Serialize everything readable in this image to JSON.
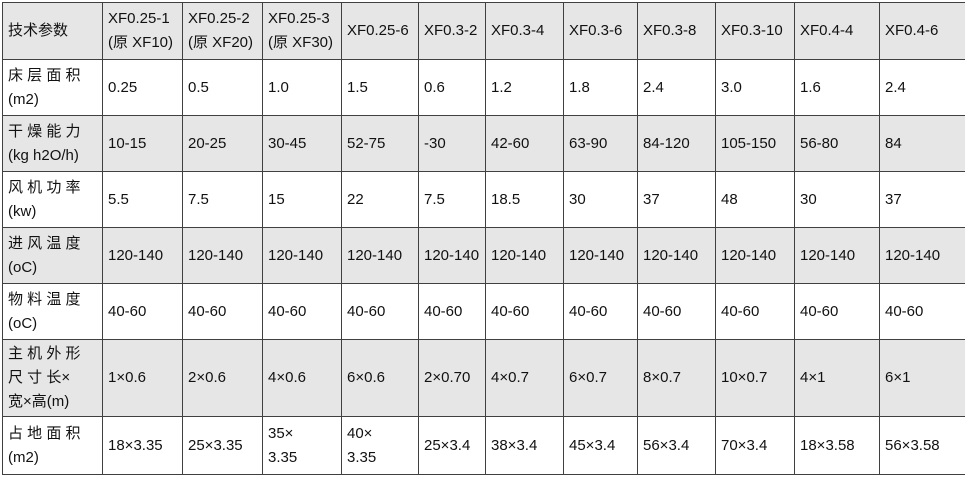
{
  "table": {
    "header": [
      "技术参数",
      "XF0.25-1\n(原 XF10)",
      "XF0.25-2\n(原 XF20)",
      "XF0.25-3\n(原 XF30)",
      "XF0.25-6",
      "XF0.3-2",
      "XF0.3-4",
      "XF0.3-6",
      "XF0.3-8",
      "XF0.3-10",
      "XF0.4-4",
      "XF0.4-6"
    ],
    "rows": [
      {
        "label": "床 层 面 积\n(m2)",
        "values": [
          "0.25",
          "0.5",
          "1.0",
          "1.5",
          "0.6",
          "1.2",
          "1.8",
          "2.4",
          "3.0",
          "1.6",
          "2.4"
        ]
      },
      {
        "label": "干 燥 能 力\n(kg h2O/h)",
        "values": [
          "10-15",
          "20-25",
          "30-45",
          "52-75",
          "-30",
          "42-60",
          "63-90",
          "84-120",
          "105-150",
          "56-80",
          "84"
        ]
      },
      {
        "label": "风 机 功 率\n(kw)",
        "values": [
          "5.5",
          "7.5",
          "15",
          "22",
          "7.5",
          "18.5",
          "30",
          "37",
          "48",
          "30",
          "37"
        ]
      },
      {
        "label": "进 风 温 度\n(oC)",
        "values": [
          "120-140",
          "120-140",
          "120-140",
          "120-140",
          "120-140",
          "120-140",
          "120-140",
          "120-140",
          "120-140",
          "120-140",
          "120-140"
        ]
      },
      {
        "label": "物 料 温 度\n(oC)",
        "values": [
          "40-60",
          "40-60",
          "40-60",
          "40-60",
          "40-60",
          "40-60",
          "40-60",
          "40-60",
          "40-60",
          "40-60",
          "40-60"
        ]
      },
      {
        "label": "主 机 外 形\n尺 寸  长×\n宽×高(m)",
        "values": [
          "1×0.6",
          "2×0.6",
          "4×0.6",
          "6×0.6",
          "2×0.70",
          "4×0.7",
          "6×0.7",
          "8×0.7",
          "10×0.7",
          "4×1",
          "6×1"
        ]
      },
      {
        "label": "占 地 面 积\n(m2)",
        "values": [
          "18×3.35",
          "25×3.35",
          "35×\n3.35",
          "40×\n3.35",
          "25×3.4",
          "38×3.4",
          "45×3.4",
          "56×3.4",
          "70×3.4",
          "18×3.58",
          "56×3.58"
        ]
      }
    ],
    "colors": {
      "stripe_bg": "#e6e6e6",
      "row_bg": "#ffffff",
      "border": "#404040",
      "text": "#111111"
    }
  }
}
